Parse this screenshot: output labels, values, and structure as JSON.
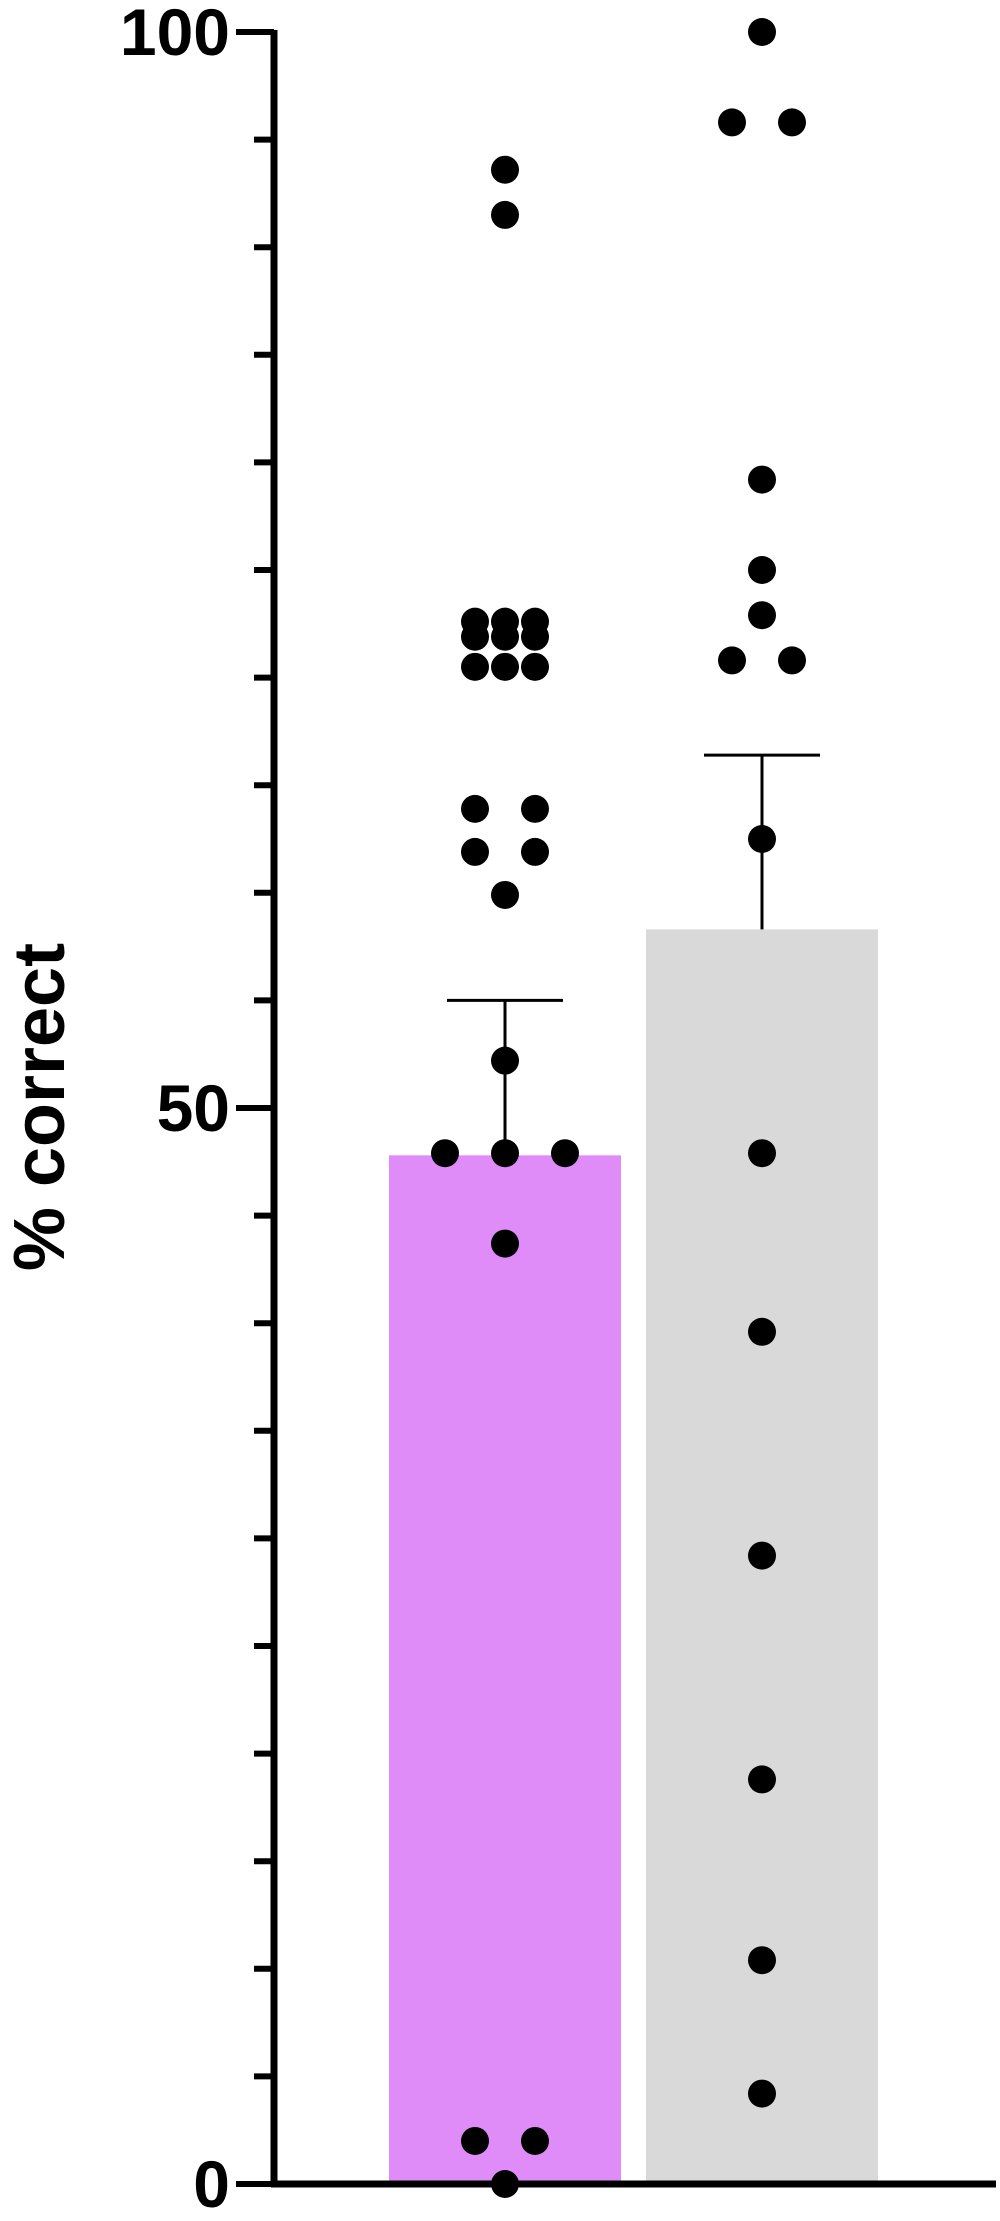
{
  "chart_data": {
    "type": "bar",
    "title": "",
    "xlabel": "",
    "ylabel": "% correct",
    "ylim": [
      0,
      100
    ],
    "yticks": [
      0,
      50,
      100
    ],
    "y_minor_tick_step": 5,
    "grid": false,
    "legend": "none",
    "series": [
      {
        "mean": 47.8,
        "error": 7.2,
        "color": "#df8cf9",
        "points": [
          {
            "x": 0,
            "y": 70.5
          },
          {
            "x": -1,
            "y": 70.5
          },
          {
            "x": 1,
            "y": 70.5
          },
          {
            "x": 0,
            "y": 72.6
          },
          {
            "x": -1,
            "y": 72.6
          },
          {
            "x": 1,
            "y": 72.6
          },
          {
            "x": 0,
            "y": 71.9
          },
          {
            "x": -1,
            "y": 71.9
          },
          {
            "x": 1,
            "y": 71.9
          },
          {
            "x": 0,
            "y": 93.6
          },
          {
            "x": 0,
            "y": 91.5
          },
          {
            "x": -1,
            "y": 63.9
          },
          {
            "x": 1,
            "y": 63.9
          },
          {
            "x": -1,
            "y": 61.9
          },
          {
            "x": 1,
            "y": 61.9
          },
          {
            "x": 0,
            "y": 59.9
          },
          {
            "x": 0,
            "y": 52.2
          },
          {
            "x": -2,
            "y": 47.9
          },
          {
            "x": 0,
            "y": 47.9
          },
          {
            "x": 2,
            "y": 47.9
          },
          {
            "x": 0,
            "y": 43.7
          },
          {
            "x": -1,
            "y": 2.0
          },
          {
            "x": 1,
            "y": 2.0
          },
          {
            "x": 0,
            "y": 0.0
          }
        ]
      },
      {
        "mean": 58.3,
        "error": 8.1,
        "color": "#d9d9d9",
        "points": [
          {
            "x": 0,
            "y": 100.0
          },
          {
            "x": -1,
            "y": 95.8
          },
          {
            "x": 1,
            "y": 95.8
          },
          {
            "x": 0,
            "y": 79.2
          },
          {
            "x": 0,
            "y": 75.0
          },
          {
            "x": 0,
            "y": 72.9
          },
          {
            "x": -1,
            "y": 70.8
          },
          {
            "x": 1,
            "y": 70.8
          },
          {
            "x": 0,
            "y": 62.5
          },
          {
            "x": 0,
            "y": 47.9
          },
          {
            "x": 0,
            "y": 39.6
          },
          {
            "x": 0,
            "y": 29.2
          },
          {
            "x": 0,
            "y": 18.8
          },
          {
            "x": 0,
            "y": 10.4
          },
          {
            "x": 0,
            "y": 4.2
          }
        ]
      }
    ]
  }
}
